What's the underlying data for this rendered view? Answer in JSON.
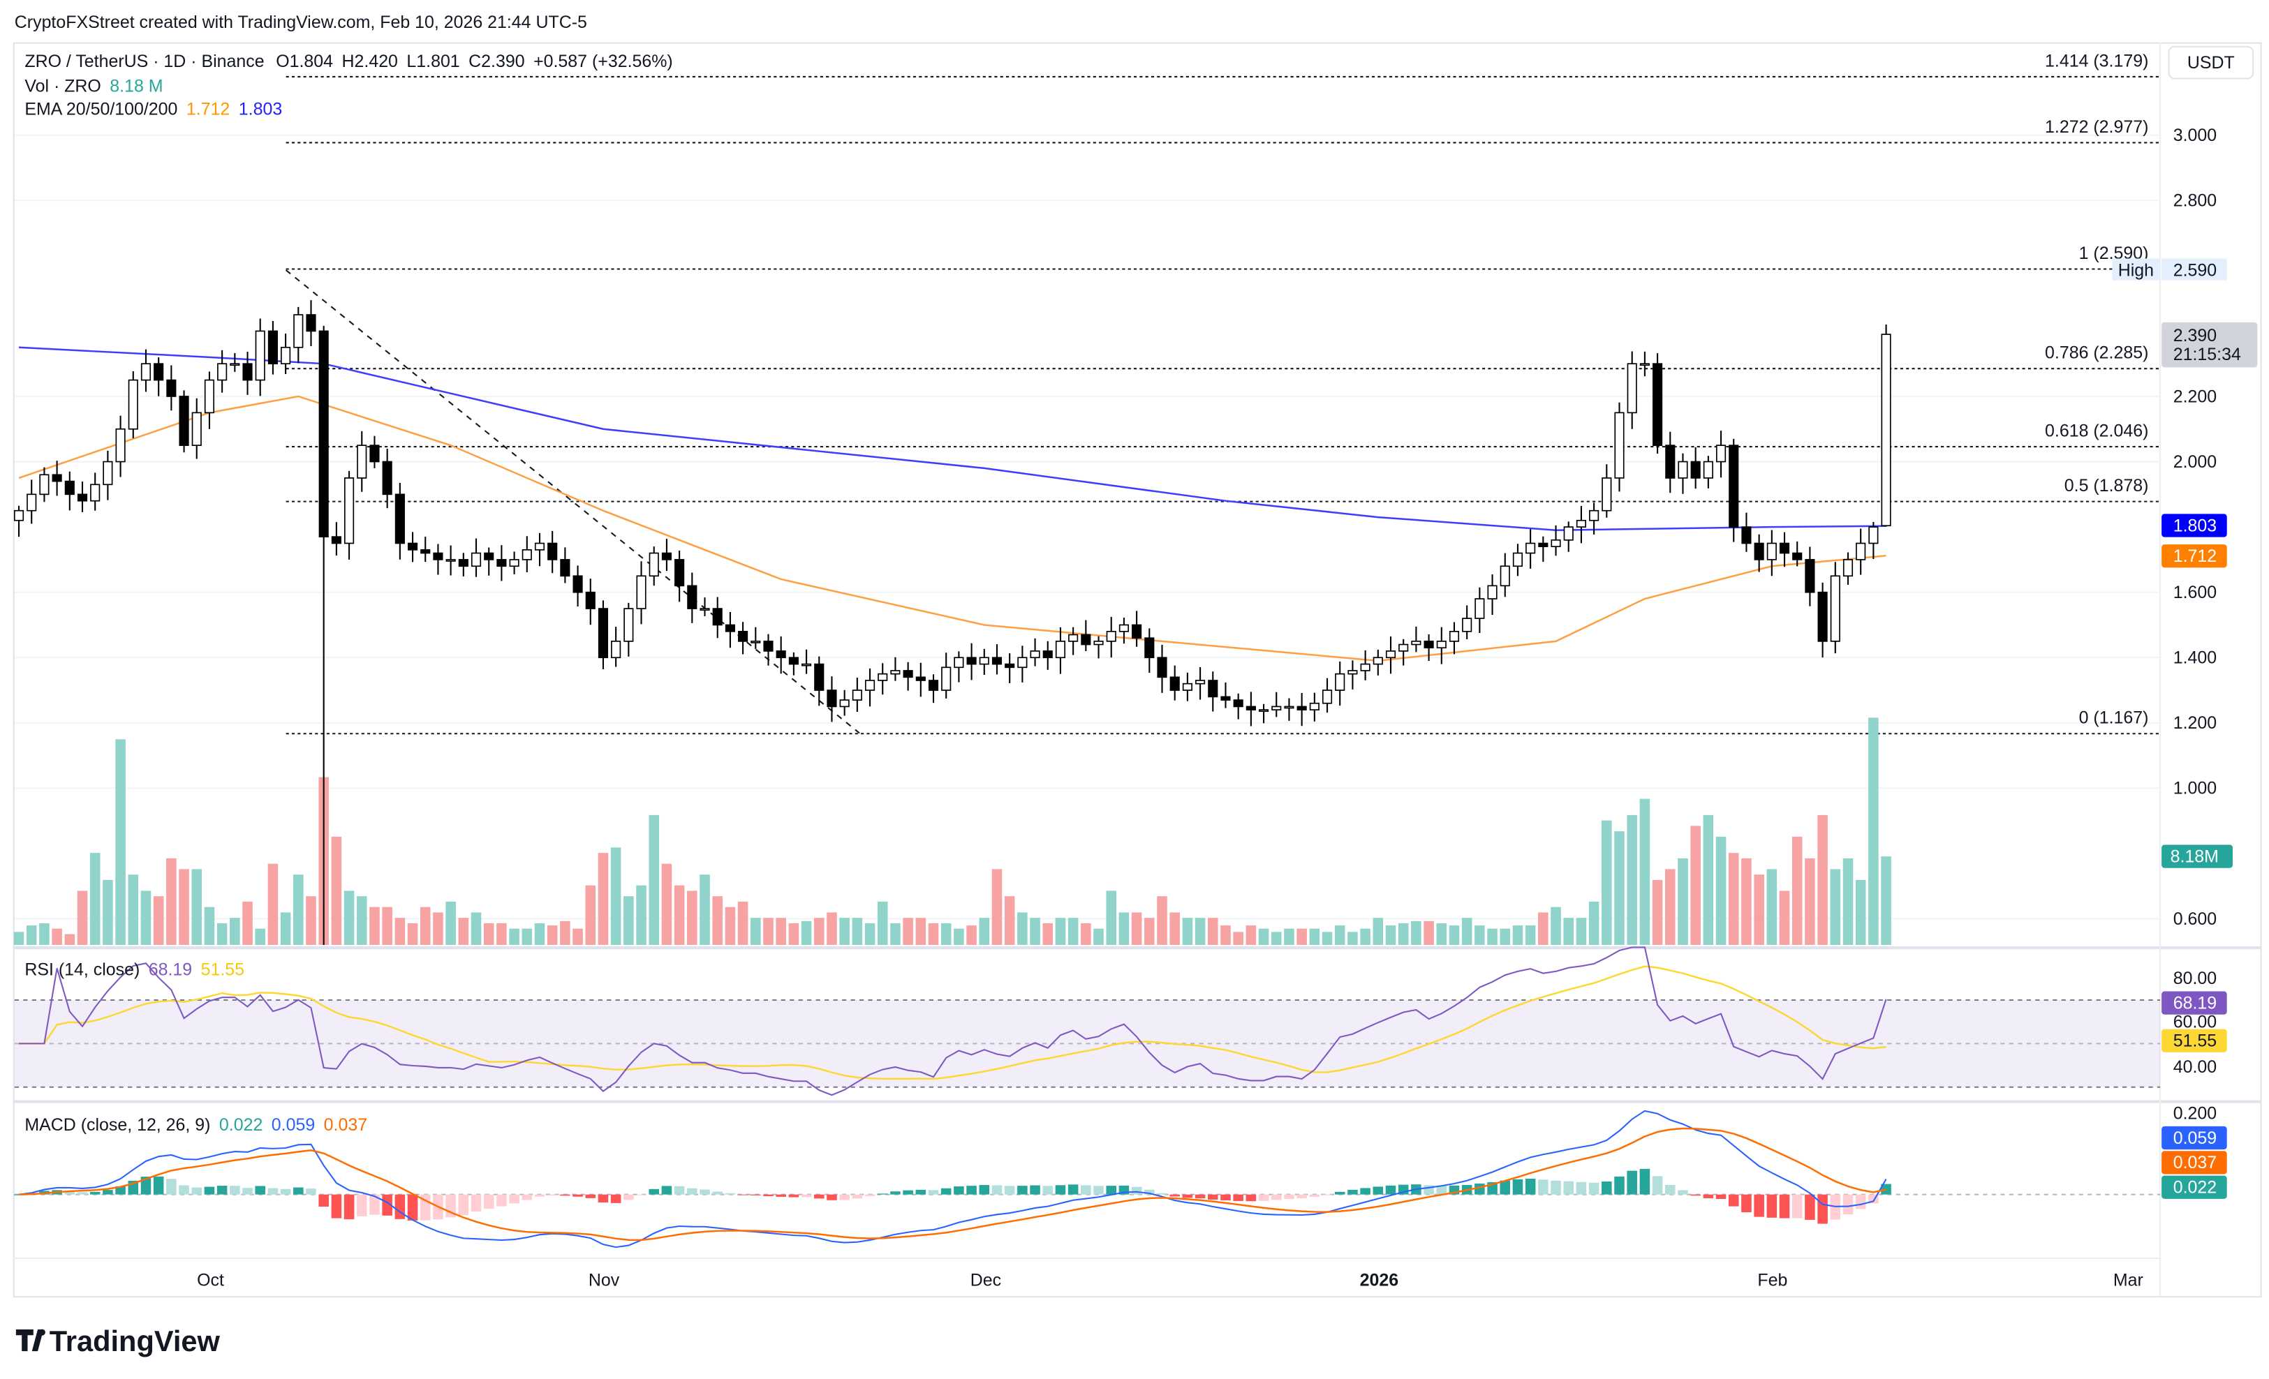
{
  "watermark": "CryptoFXStreet created with TradingView.com, Feb 10, 2026 21:44 UTC-5",
  "logo": "TradingView",
  "legend": {
    "symbol": "ZRO / TetherUS · 1D · Binance",
    "open": "O1.804",
    "high": "H2.420",
    "low": "L1.801",
    "close": "C2.390",
    "change": "+0.587 (+32.56%)",
    "vol_label": "Vol · ZRO",
    "vol_value": "8.18 M",
    "ema_label": "EMA 20/50/100/200",
    "ema_a": "1.712",
    "ema_b": "1.803"
  },
  "rsi_legend": {
    "label": "RSI (14, close)",
    "rsi": "68.19",
    "ma": "51.55"
  },
  "macd_legend": {
    "label": "MACD (close, 12, 26, 9)",
    "hist": "0.022",
    "macd": "0.059",
    "signal": "0.037"
  },
  "axis": {
    "currency": "USDT",
    "price_ticks": [
      "3.000",
      "2.800",
      "2.200",
      "2.000",
      "1.600",
      "1.400",
      "1.200",
      "1.000",
      "0.600"
    ],
    "high_label": "High",
    "high_value": "2.590",
    "last_price": "2.390",
    "countdown": "21:15:34",
    "ema200_value": "1.803",
    "ema50_value": "1.712",
    "vol_value": "8.18M",
    "rsi_ticks": [
      "80.00",
      "60.00",
      "40.00"
    ],
    "rsi_value": "68.19",
    "rsi_ma_value": "51.55",
    "macd_ticks": [
      "0.200"
    ],
    "macd_value": "0.059",
    "signal_value": "0.037",
    "hist_value": "0.022",
    "time_ticks": [
      "Oct",
      "Nov",
      "Dec",
      "2026",
      "Feb",
      "Mar"
    ]
  },
  "fib_levels": [
    {
      "label": "1.414 (3.179)",
      "price": 3.179
    },
    {
      "label": "1.272 (2.977)",
      "price": 2.977
    },
    {
      "label": "1 (2.590)",
      "price": 2.59
    },
    {
      "label": "0.786 (2.285)",
      "price": 2.285
    },
    {
      "label": "0.618 (2.046)",
      "price": 2.046
    },
    {
      "label": "0.5 (1.878)",
      "price": 1.878
    },
    {
      "label": "0 (1.167)",
      "price": 1.167
    }
  ],
  "colors": {
    "up_volume": "#8fd3cb",
    "down_volume": "#f7a3a3",
    "ema50": "#ff9f43",
    "ema200": "#3d3dff",
    "rsi": "#7e57c2",
    "rsi_ma": "#fdd835",
    "macd": "#2962ff",
    "signal": "#ff6d00",
    "hist_up": "#26a69a",
    "hist_up_light": "#b2dfdb",
    "hist_down": "#ff5252",
    "hist_down_light": "#ffcdd2"
  },
  "chart_data": {
    "type": "candlestick",
    "first_date": "2025-09-16",
    "close": [
      1.85,
      1.9,
      1.96,
      1.94,
      1.9,
      1.88,
      1.93,
      2.0,
      2.1,
      2.25,
      2.3,
      2.25,
      2.2,
      2.05,
      2.15,
      2.25,
      2.3,
      2.3,
      2.25,
      2.4,
      2.3,
      2.35,
      2.45,
      2.4,
      1.77,
      1.75,
      1.95,
      2.05,
      2.0,
      1.9,
      1.75,
      1.73,
      1.72,
      1.7,
      1.7,
      1.68,
      1.72,
      1.7,
      1.68,
      1.7,
      1.73,
      1.75,
      1.7,
      1.65,
      1.6,
      1.55,
      1.4,
      1.45,
      1.55,
      1.65,
      1.72,
      1.7,
      1.62,
      1.55,
      1.55,
      1.5,
      1.48,
      1.45,
      1.45,
      1.42,
      1.4,
      1.38,
      1.38,
      1.3,
      1.25,
      1.27,
      1.3,
      1.33,
      1.35,
      1.36,
      1.34,
      1.33,
      1.3,
      1.37,
      1.4,
      1.38,
      1.4,
      1.38,
      1.37,
      1.4,
      1.42,
      1.4,
      1.45,
      1.47,
      1.44,
      1.45,
      1.48,
      1.5,
      1.46,
      1.4,
      1.34,
      1.3,
      1.32,
      1.33,
      1.28,
      1.27,
      1.25,
      1.24,
      1.24,
      1.25,
      1.25,
      1.24,
      1.26,
      1.3,
      1.35,
      1.36,
      1.38,
      1.4,
      1.42,
      1.44,
      1.45,
      1.43,
      1.45,
      1.48,
      1.52,
      1.58,
      1.62,
      1.68,
      1.72,
      1.75,
      1.74,
      1.76,
      1.8,
      1.82,
      1.85,
      1.95,
      2.15,
      2.3,
      2.3,
      2.05,
      1.95,
      2.0,
      1.95,
      2.0,
      2.05,
      1.8,
      1.75,
      1.7,
      1.75,
      1.72,
      1.7,
      1.6,
      1.45,
      1.65,
      1.7,
      1.75,
      1.8,
      2.39
    ],
    "volume_millions": [
      1.2,
      1.8,
      2.0,
      1.5,
      1.0,
      5.0,
      8.5,
      6.0,
      19,
      6.5,
      5.0,
      4.5,
      8.0,
      7.0,
      7.0,
      3.5,
      2.0,
      2.5,
      4.0,
      1.5,
      7.5,
      3.0,
      6.5,
      4.5,
      15.5,
      10,
      5,
      4.5,
      3.5,
      3.5,
      2.5,
      2,
      3.5,
      3,
      4,
      2.5,
      3,
      2,
      2,
      1.5,
      1.5,
      2,
      1.8,
      2.2,
      1.5,
      5.5,
      8.5,
      9,
      4.5,
      5.5,
      12,
      7.5,
      5.5,
      5,
      6.5,
      4.5,
      3.5,
      4,
      2.5,
      2.5,
      2.5,
      2,
      2.2,
      2.5,
      3,
      2.5,
      2.5,
      2,
      4,
      2,
      2.5,
      2.5,
      2,
      2,
      1.5,
      1.8,
      2.5,
      7,
      4.5,
      3,
      2.5,
      2,
      2.5,
      2.5,
      2,
      1.5,
      5,
      3,
      3,
      2.5,
      4.5,
      3,
      2.5,
      2.5,
      2.5,
      1.8,
      1.2,
      1.8,
      1.5,
      1.2,
      1.5,
      1.5,
      1.5,
      1.2,
      1.8,
      1.2,
      1.5,
      2.5,
      1.8,
      2,
      2.2,
      2.2,
      2,
      1.8,
      2.5,
      1.8,
      1.5,
      1.5,
      1.8,
      1.8,
      3,
      3.5,
      2.5,
      2.5,
      4,
      11.5,
      10.5,
      12,
      13.5,
      6,
      7,
      8,
      11,
      12,
      10,
      8.5,
      8,
      6.5,
      7,
      5,
      10,
      8,
      12,
      7,
      8,
      6,
      21,
      8.18
    ],
    "bar_overrides": [
      {
        "date": "2025-10-10",
        "low": 0.52
      },
      {
        "date": "2026-02-10",
        "open": 1.804,
        "high": 2.42,
        "low": 1.801
      }
    ],
    "ema50": [
      [
        "2025-09-16",
        1.95
      ],
      [
        "2025-10-01",
        2.15
      ],
      [
        "2025-10-08",
        2.2
      ],
      [
        "2025-10-20",
        2.05
      ],
      [
        "2025-11-01",
        1.85
      ],
      [
        "2025-11-15",
        1.64
      ],
      [
        "2025-12-01",
        1.5
      ],
      [
        "2025-12-15",
        1.45
      ],
      [
        "2026-01-01",
        1.39
      ],
      [
        "2026-01-15",
        1.45
      ],
      [
        "2026-01-22",
        1.58
      ],
      [
        "2026-02-01",
        1.68
      ],
      [
        "2026-02-10",
        1.712
      ]
    ],
    "ema200": [
      [
        "2025-09-16",
        2.35
      ],
      [
        "2025-10-01",
        2.32
      ],
      [
        "2025-10-10",
        2.3
      ],
      [
        "2025-11-01",
        2.1
      ],
      [
        "2025-12-01",
        1.98
      ],
      [
        "2025-12-20",
        1.88
      ],
      [
        "2026-01-01",
        1.83
      ],
      [
        "2026-01-15",
        1.79
      ],
      [
        "2026-02-01",
        1.8
      ],
      [
        "2026-02-10",
        1.803
      ]
    ],
    "price_range": [
      0.5,
      3.25
    ],
    "rsi_bands": [
      70,
      50,
      30
    ]
  }
}
